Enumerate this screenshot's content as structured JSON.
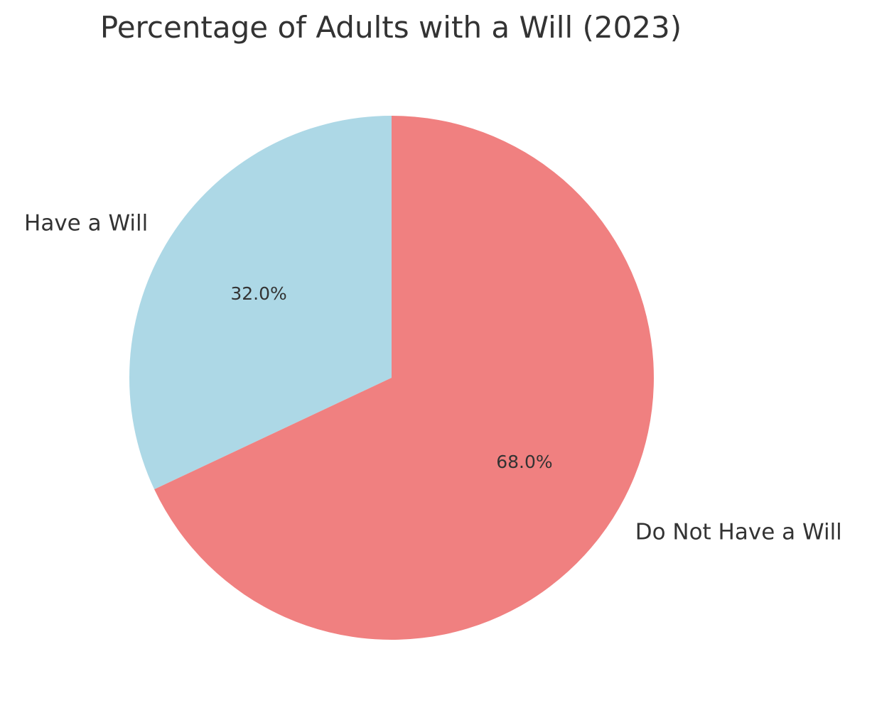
{
  "chart_data": {
    "type": "pie",
    "title": "Percentage of Adults with a Will (2023)",
    "slices": [
      {
        "label": "Have a Will",
        "value": 32.0,
        "pct_label": "32.0%",
        "color": "#add8e6"
      },
      {
        "label": "Do Not Have a Will",
        "value": 68.0,
        "pct_label": "68.0%",
        "color": "#f08080"
      }
    ],
    "start_angle_deg": 90,
    "direction": "counterclockwise"
  }
}
